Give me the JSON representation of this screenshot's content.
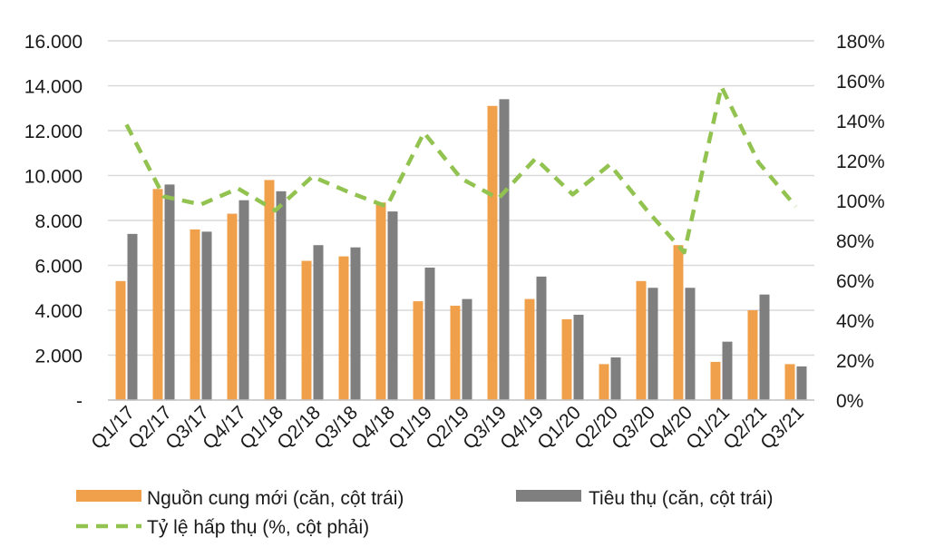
{
  "colors": {
    "supply": "#f0a04b",
    "sales": "#7f7f80",
    "absorption": "#92c24f",
    "grid": "#d9d9d9"
  },
  "chart_data": {
    "type": "bar",
    "categories": [
      "Q1/17",
      "Q2/17",
      "Q3/17",
      "Q4/17",
      "Q1/18",
      "Q2/18",
      "Q3/18",
      "Q4/18",
      "Q1/19",
      "Q2/19",
      "Q3/19",
      "Q4/19",
      "Q1/20",
      "Q2/20",
      "Q3/20",
      "Q4/20",
      "Q1/21",
      "Q2/21",
      "Q3/21"
    ],
    "series": [
      {
        "name": "Nguồn cung mới (căn, cột trái)",
        "type": "bar",
        "axis": "left",
        "color": "#f0a04b",
        "values": [
          5300,
          9400,
          7600,
          8300,
          9800,
          6200,
          6400,
          8800,
          4400,
          4200,
          13100,
          4500,
          3600,
          1600,
          5300,
          6900,
          1700,
          4000,
          1600
        ]
      },
      {
        "name": "Tiêu thụ (căn, cột trái)",
        "type": "bar",
        "axis": "left",
        "color": "#7f7f80",
        "values": [
          7400,
          9600,
          7500,
          8900,
          9300,
          6900,
          6800,
          8400,
          5900,
          4500,
          13400,
          5500,
          3800,
          1900,
          5000,
          5000,
          2600,
          4700,
          1500
        ]
      },
      {
        "name": "Tỷ lệ hấp thụ (%, cột phải)",
        "type": "line",
        "axis": "right",
        "style": "dashed",
        "color": "#92c24f",
        "values": [
          138,
          102,
          98,
          106,
          95,
          112,
          104,
          97,
          134,
          111,
          101,
          121,
          103,
          118,
          95,
          74,
          157,
          119,
          97
        ]
      }
    ],
    "y_left": {
      "min": 0,
      "max": 16000,
      "ticks": [
        "-",
        "2.000",
        "4.000",
        "6.000",
        "8.000",
        "10.000",
        "12.000",
        "14.000",
        "16.000"
      ]
    },
    "y_right": {
      "min": 0,
      "max": 180,
      "ticks": [
        "0%",
        "20%",
        "40%",
        "60%",
        "80%",
        "100%",
        "120%",
        "140%",
        "160%",
        "180%"
      ]
    },
    "legend": {
      "placement": "bottom",
      "items": [
        "Nguồn cung mới (căn, cột trái)",
        "Tiêu thụ (căn, cột trái)",
        "Tỷ lệ hấp thụ (%, cột phải)"
      ]
    },
    "grid": true
  }
}
